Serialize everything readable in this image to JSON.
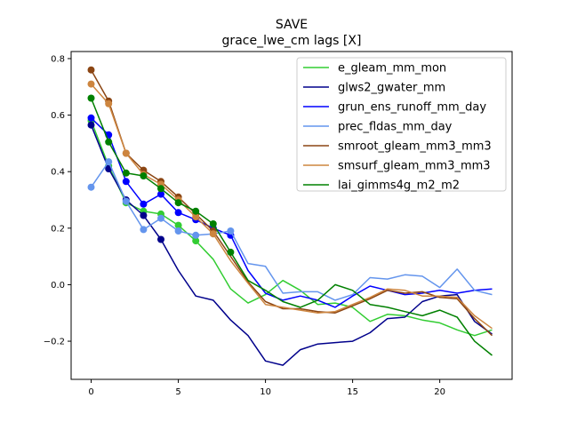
{
  "chart_data": {
    "type": "line",
    "title": "SAVE",
    "subtitle": "grace_lwe_cm lags [X]",
    "xlabel": "",
    "ylabel": "",
    "xlim": [
      -1.15,
      24.15
    ],
    "ylim": [
      -0.335,
      0.825
    ],
    "xticks": [
      0,
      5,
      10,
      15,
      20
    ],
    "xtick_labels": [
      "0",
      "5",
      "10",
      "15",
      "20"
    ],
    "yticks": [
      -0.2,
      0.0,
      0.2,
      0.4,
      0.6,
      0.8
    ],
    "ytick_labels": [
      "−0.2",
      "0.0",
      "0.2",
      "0.4",
      "0.6",
      "0.8"
    ],
    "grid": false,
    "legend_position": "top-right",
    "x": [
      0,
      1,
      2,
      3,
      4,
      5,
      6,
      7,
      8,
      9,
      10,
      11,
      12,
      13,
      14,
      15,
      16,
      17,
      18,
      19,
      20,
      21,
      22,
      23
    ],
    "series": [
      {
        "name": "e_gleam_mm_mon",
        "color": "#32cd32",
        "markers_until": 6,
        "values": [
          0.58,
          0.42,
          0.29,
          0.26,
          0.25,
          0.21,
          0.155,
          0.09,
          -0.015,
          -0.065,
          -0.035,
          0.015,
          -0.02,
          -0.07,
          -0.065,
          -0.08,
          -0.13,
          -0.105,
          -0.11,
          -0.125,
          -0.135,
          -0.16,
          -0.18,
          -0.16
        ]
      },
      {
        "name": "glws2_gwater_mm",
        "color": "#00008b",
        "markers_until": 4,
        "values": [
          0.565,
          0.41,
          0.3,
          0.245,
          0.16,
          0.05,
          -0.04,
          -0.055,
          -0.125,
          -0.18,
          -0.27,
          -0.285,
          -0.23,
          -0.21,
          -0.205,
          -0.2,
          -0.17,
          -0.12,
          -0.115,
          -0.06,
          -0.04,
          -0.035,
          -0.13,
          -0.175
        ]
      },
      {
        "name": "grun_ens_runoff_mm_day",
        "color": "#0000ff",
        "markers_until": 8,
        "values": [
          0.59,
          0.53,
          0.365,
          0.285,
          0.32,
          0.255,
          0.23,
          0.2,
          0.175,
          0.05,
          -0.03,
          -0.055,
          -0.04,
          -0.055,
          -0.08,
          -0.04,
          -0.005,
          -0.02,
          -0.035,
          -0.03,
          -0.02,
          -0.03,
          -0.02,
          -0.015
        ]
      },
      {
        "name": "prec_fldas_mm_day",
        "color": "#6495ed",
        "markers_until": 8,
        "values": [
          0.345,
          0.435,
          0.295,
          0.195,
          0.235,
          0.19,
          0.175,
          0.18,
          0.19,
          0.075,
          0.065,
          -0.03,
          -0.025,
          -0.025,
          -0.055,
          -0.035,
          0.025,
          0.02,
          0.035,
          0.03,
          -0.01,
          0.055,
          -0.02,
          -0.035
        ]
      },
      {
        "name": "smroot_gleam_mm3_mm3",
        "color": "#8b4513",
        "markers_until": 7,
        "values": [
          0.76,
          0.65,
          0.465,
          0.405,
          0.365,
          0.31,
          0.25,
          0.19,
          0.1,
          0.01,
          -0.06,
          -0.085,
          -0.085,
          -0.095,
          -0.1,
          -0.075,
          -0.05,
          -0.02,
          -0.03,
          -0.025,
          -0.045,
          -0.05,
          -0.12,
          -0.18
        ]
      },
      {
        "name": "smsurf_gleam_mm3_mm3",
        "color": "#cd853f",
        "markers_until": 7,
        "values": [
          0.71,
          0.64,
          0.465,
          0.39,
          0.355,
          0.3,
          0.24,
          0.18,
          0.085,
          0.005,
          -0.07,
          -0.08,
          -0.09,
          -0.1,
          -0.095,
          -0.07,
          -0.045,
          -0.015,
          -0.02,
          -0.04,
          -0.04,
          -0.045,
          -0.11,
          -0.155
        ]
      },
      {
        "name": "lai_gimms4g_m2_m2",
        "color": "#008000",
        "markers_until": 8,
        "values": [
          0.66,
          0.505,
          0.395,
          0.385,
          0.34,
          0.29,
          0.26,
          0.215,
          0.115,
          0.015,
          -0.02,
          -0.06,
          -0.08,
          -0.055,
          0.0,
          -0.02,
          -0.07,
          -0.08,
          -0.095,
          -0.11,
          -0.09,
          -0.115,
          -0.2,
          -0.25
        ]
      }
    ]
  }
}
